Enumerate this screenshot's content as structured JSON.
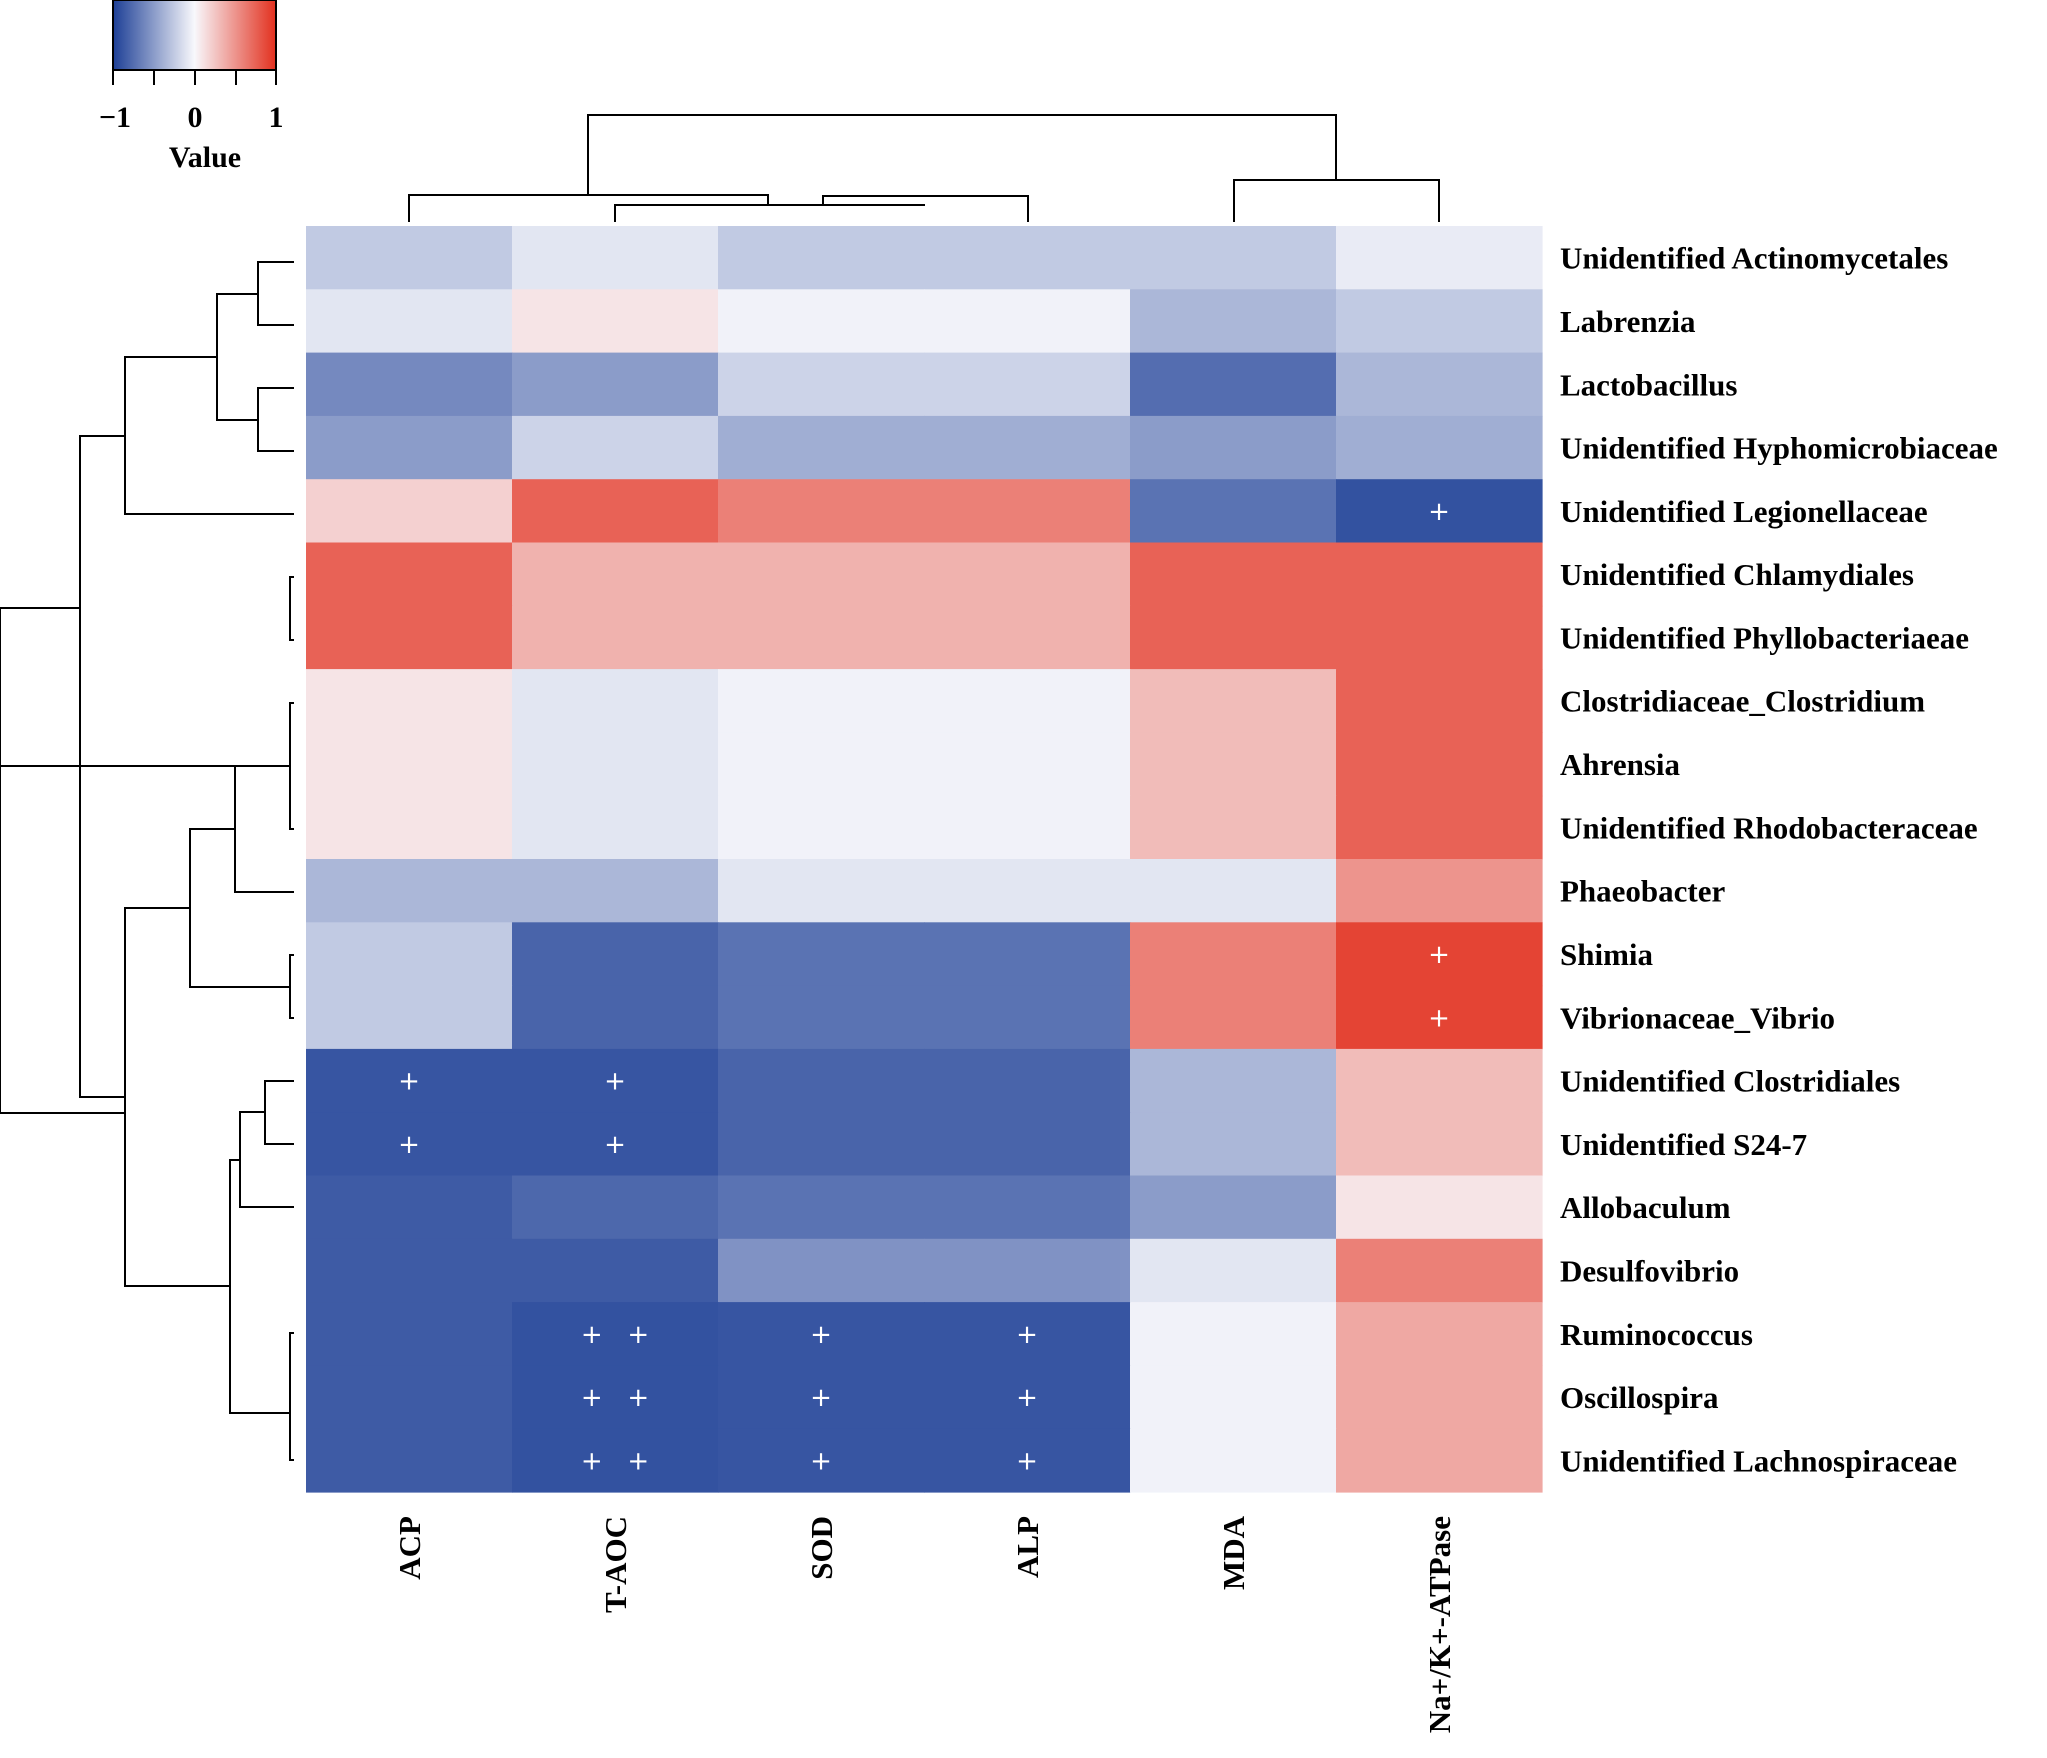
{
  "chart_data": {
    "type": "heatmap",
    "title": "",
    "columns": [
      "ACP",
      "T-AOC",
      "SOD",
      "ALP",
      "MDA",
      "Na+/K+-ATPase"
    ],
    "rows": [
      "Unidentified Actinomycetales",
      "Labrenzia",
      "Lactobacillus",
      "Unidentified Hyphomicrobiaceae",
      "Unidentified Legionellaceae",
      "Unidentified Chlamydiales",
      "Unidentified Phyllobacteriaeae",
      "Clostridiaceae_Clostridium",
      "Ahrensia",
      "Unidentified Rhodobacteraceae",
      "Phaeobacter",
      "Shimia",
      "Vibrionaceae_Vibrio",
      "Unidentified Clostridiales",
      "Unidentified S24-7",
      "Allobaculum",
      "Desulfovibrio",
      "Ruminococcus",
      "Oscillospira",
      "Unidentified Lachnospiraceae"
    ],
    "values": [
      [
        -0.25,
        -0.1,
        -0.25,
        -0.25,
        -0.25,
        -0.07
      ],
      [
        -0.1,
        0.1,
        -0.03,
        -0.03,
        -0.35,
        -0.25
      ],
      [
        -0.6,
        -0.5,
        -0.2,
        -0.2,
        -0.75,
        -0.35
      ],
      [
        -0.5,
        -0.2,
        -0.4,
        -0.4,
        -0.5,
        -0.4
      ],
      [
        0.2,
        0.75,
        0.6,
        0.6,
        -0.72,
        -0.9
      ],
      [
        0.75,
        0.35,
        0.35,
        0.35,
        0.75,
        0.75
      ],
      [
        0.75,
        0.35,
        0.35,
        0.35,
        0.75,
        0.75
      ],
      [
        0.1,
        -0.1,
        -0.03,
        -0.03,
        0.3,
        0.75
      ],
      [
        0.1,
        -0.1,
        -0.03,
        -0.03,
        0.3,
        0.75
      ],
      [
        0.1,
        -0.1,
        -0.03,
        -0.03,
        0.3,
        0.75
      ],
      [
        -0.35,
        -0.35,
        -0.1,
        -0.1,
        -0.1,
        0.5
      ],
      [
        -0.25,
        -0.8,
        -0.72,
        -0.72,
        0.6,
        0.9
      ],
      [
        -0.25,
        -0.8,
        -0.72,
        -0.72,
        0.6,
        0.9
      ],
      [
        -0.88,
        -0.88,
        -0.8,
        -0.8,
        -0.35,
        0.3
      ],
      [
        -0.88,
        -0.88,
        -0.8,
        -0.8,
        -0.35,
        0.3
      ],
      [
        -0.85,
        -0.78,
        -0.72,
        -0.72,
        -0.5,
        0.1
      ],
      [
        -0.85,
        -0.85,
        -0.55,
        -0.55,
        -0.1,
        0.6
      ],
      [
        -0.85,
        -0.9,
        -0.88,
        -0.88,
        -0.03,
        0.4
      ],
      [
        -0.85,
        -0.9,
        -0.88,
        -0.88,
        -0.03,
        0.4
      ],
      [
        -0.85,
        -0.9,
        -0.88,
        -0.88,
        -0.03,
        0.4
      ]
    ],
    "significance": [
      [
        "",
        "",
        "",
        "",
        "",
        ""
      ],
      [
        "",
        "",
        "",
        "",
        "",
        ""
      ],
      [
        "",
        "",
        "",
        "",
        "",
        ""
      ],
      [
        "",
        "",
        "",
        "",
        "",
        ""
      ],
      [
        "",
        "",
        "",
        "",
        "",
        "+"
      ],
      [
        "",
        "",
        "",
        "",
        "",
        ""
      ],
      [
        "",
        "",
        "",
        "",
        "",
        ""
      ],
      [
        "",
        "",
        "",
        "",
        "",
        ""
      ],
      [
        "",
        "",
        "",
        "",
        "",
        ""
      ],
      [
        "",
        "",
        "",
        "",
        "",
        ""
      ],
      [
        "",
        "",
        "",
        "",
        "",
        ""
      ],
      [
        "",
        "",
        "",
        "",
        "",
        "+"
      ],
      [
        "",
        "",
        "",
        "",
        "",
        "+"
      ],
      [
        "+",
        "+",
        "",
        "",
        "",
        ""
      ],
      [
        "+",
        "+",
        "",
        "",
        "",
        ""
      ],
      [
        "",
        "",
        "",
        "",
        "",
        ""
      ],
      [
        "",
        "",
        "",
        "",
        "",
        ""
      ],
      [
        "",
        "+ +",
        "+",
        "+",
        "",
        ""
      ],
      [
        "",
        "+ +",
        "+",
        "+",
        "",
        ""
      ],
      [
        "",
        "+ +",
        "+",
        "+",
        "",
        ""
      ]
    ],
    "legend": {
      "title": "Value",
      "ticks": [
        "−1",
        "0",
        "1"
      ],
      "tick_values": [
        -1,
        0,
        1
      ],
      "range": [
        -1,
        1
      ],
      "colors": {
        "low": "#1d3f96",
        "mid": "#f8f8fc",
        "high": "#e2301e"
      },
      "placement": "top-left"
    }
  }
}
